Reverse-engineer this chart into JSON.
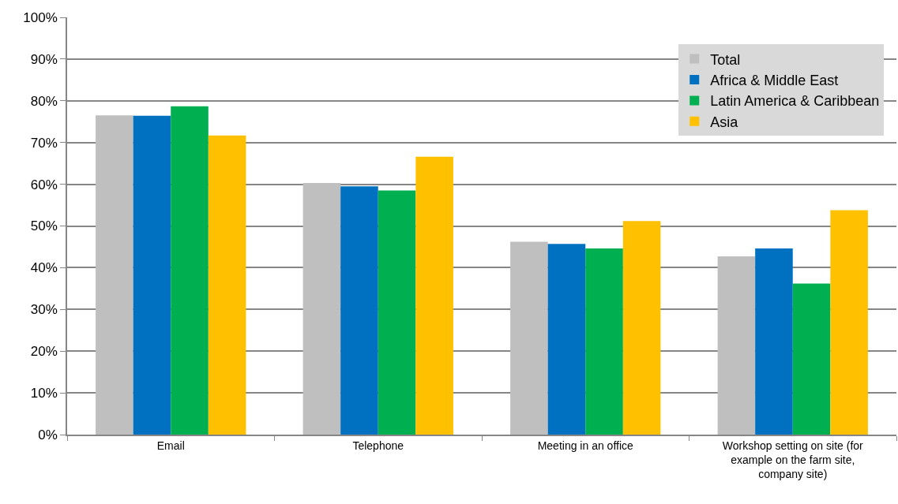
{
  "chart_data": {
    "type": "bar",
    "categories": [
      "Email",
      "Telephone",
      "Meeting in an office",
      "Workshop setting on site (for example on the farm site, company site)"
    ],
    "series": [
      {
        "name": "Total",
        "color": "#bfbfbf",
        "values": [
          76.5,
          60.3,
          46.2,
          42.7
        ]
      },
      {
        "name": "Africa & Middle East",
        "color": "#0070c0",
        "values": [
          76.4,
          59.5,
          45.7,
          44.6
        ]
      },
      {
        "name": "Latin America & Caribbean",
        "color": "#00b050",
        "values": [
          78.7,
          58.5,
          44.6,
          36.2
        ]
      },
      {
        "name": "Asia",
        "color": "#ffc000",
        "values": [
          71.7,
          66.6,
          51.2,
          53.8
        ]
      }
    ],
    "ylim": [
      0,
      100
    ],
    "yticks": [
      {
        "value": 0,
        "label": "0%"
      },
      {
        "value": 10,
        "label": "10%"
      },
      {
        "value": 20,
        "label": "20%"
      },
      {
        "value": 30,
        "label": "30%"
      },
      {
        "value": 40,
        "label": "40%"
      },
      {
        "value": 50,
        "label": "50%"
      },
      {
        "value": 60,
        "label": "60%"
      },
      {
        "value": 70,
        "label": "70%"
      },
      {
        "value": 80,
        "label": "80%"
      },
      {
        "value": 90,
        "label": "90%"
      },
      {
        "value": 100,
        "label": "100%"
      }
    ],
    "grid": "y",
    "legend": "top right"
  }
}
